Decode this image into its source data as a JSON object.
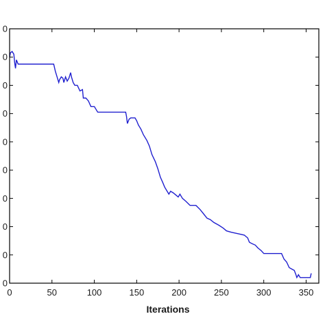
{
  "chart_data": {
    "type": "line",
    "title": "",
    "xlabel": "Iterations",
    "ylabel": "",
    "xlim": [
      0,
      365
    ],
    "ylim": [
      0,
      9
    ],
    "x_ticks": [
      0,
      50,
      100,
      150,
      200,
      250,
      300,
      350
    ],
    "y_ticks": [
      0,
      1,
      2,
      3,
      4,
      5,
      6,
      7,
      8,
      9
    ],
    "y_tick_labels": [
      "0",
      "0",
      "0",
      "0",
      "0",
      "0",
      "0",
      "0",
      "0",
      "0"
    ],
    "grid": false,
    "line_color": "#1f1fcf",
    "series": [
      {
        "points": [
          [
            0,
            8.0
          ],
          [
            1,
            8.15
          ],
          [
            3,
            8.2
          ],
          [
            5,
            8.1
          ],
          [
            6,
            7.8
          ],
          [
            7,
            7.6
          ],
          [
            8,
            7.9
          ],
          [
            10,
            7.75
          ],
          [
            20,
            7.75
          ],
          [
            40,
            7.75
          ],
          [
            52,
            7.75
          ],
          [
            54,
            7.5
          ],
          [
            56,
            7.3
          ],
          [
            58,
            7.1
          ],
          [
            59,
            7.2
          ],
          [
            61,
            7.3
          ],
          [
            63,
            7.25
          ],
          [
            64,
            7.1
          ],
          [
            66,
            7.3
          ],
          [
            68,
            7.15
          ],
          [
            70,
            7.25
          ],
          [
            72,
            7.45
          ],
          [
            73,
            7.3
          ],
          [
            75,
            7.1
          ],
          [
            77,
            7.0
          ],
          [
            80,
            7.0
          ],
          [
            83,
            6.8
          ],
          [
            86,
            6.85
          ],
          [
            87,
            6.55
          ],
          [
            90,
            6.55
          ],
          [
            93,
            6.45
          ],
          [
            96,
            6.25
          ],
          [
            100,
            6.25
          ],
          [
            104,
            6.05
          ],
          [
            110,
            6.05
          ],
          [
            120,
            6.05
          ],
          [
            130,
            6.05
          ],
          [
            137,
            6.05
          ],
          [
            138,
            5.9
          ],
          [
            139,
            5.65
          ],
          [
            141,
            5.8
          ],
          [
            143,
            5.85
          ],
          [
            145,
            5.85
          ],
          [
            148,
            5.85
          ],
          [
            150,
            5.75
          ],
          [
            152,
            5.6
          ],
          [
            155,
            5.45
          ],
          [
            158,
            5.25
          ],
          [
            162,
            5.05
          ],
          [
            165,
            4.85
          ],
          [
            168,
            4.55
          ],
          [
            172,
            4.3
          ],
          [
            175,
            4.05
          ],
          [
            178,
            3.75
          ],
          [
            181,
            3.55
          ],
          [
            183,
            3.4
          ],
          [
            185,
            3.3
          ],
          [
            188,
            3.15
          ],
          [
            190,
            3.25
          ],
          [
            193,
            3.2
          ],
          [
            195,
            3.15
          ],
          [
            199,
            3.05
          ],
          [
            201,
            3.15
          ],
          [
            204,
            3.0
          ],
          [
            208,
            2.9
          ],
          [
            213,
            2.75
          ],
          [
            220,
            2.75
          ],
          [
            225,
            2.6
          ],
          [
            229,
            2.45
          ],
          [
            233,
            2.3
          ],
          [
            237,
            2.25
          ],
          [
            241,
            2.15
          ],
          [
            247,
            2.05
          ],
          [
            252,
            1.95
          ],
          [
            256,
            1.85
          ],
          [
            262,
            1.8
          ],
          [
            270,
            1.75
          ],
          [
            277,
            1.7
          ],
          [
            281,
            1.6
          ],
          [
            283,
            1.45
          ],
          [
            286,
            1.4
          ],
          [
            290,
            1.35
          ],
          [
            293,
            1.25
          ],
          [
            297,
            1.15
          ],
          [
            300,
            1.05
          ],
          [
            303,
            1.05
          ],
          [
            315,
            1.05
          ],
          [
            321,
            1.05
          ],
          [
            324,
            0.85
          ],
          [
            327,
            0.75
          ],
          [
            330,
            0.55
          ],
          [
            333,
            0.5
          ],
          [
            336,
            0.45
          ],
          [
            338,
            0.3
          ],
          [
            339,
            0.2
          ],
          [
            341,
            0.3
          ],
          [
            343,
            0.2
          ],
          [
            348,
            0.2
          ],
          [
            353,
            0.2
          ],
          [
            355,
            0.2
          ],
          [
            356,
            0.35
          ]
        ]
      }
    ]
  }
}
